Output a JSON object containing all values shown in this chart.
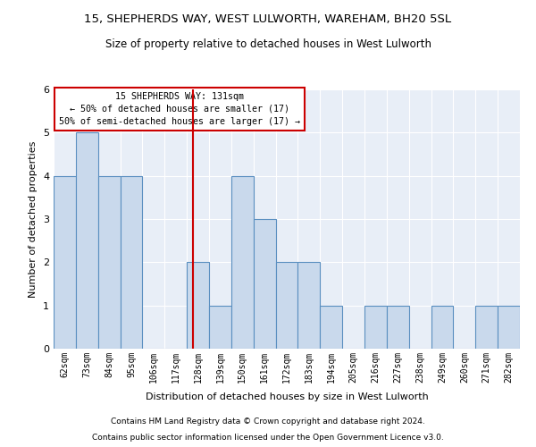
{
  "title": "15, SHEPHERDS WAY, WEST LULWORTH, WAREHAM, BH20 5SL",
  "subtitle": "Size of property relative to detached houses in West Lulworth",
  "xlabel": "Distribution of detached houses by size in West Lulworth",
  "ylabel": "Number of detached properties",
  "footnote1": "Contains HM Land Registry data © Crown copyright and database right 2024.",
  "footnote2": "Contains public sector information licensed under the Open Government Licence v3.0.",
  "annotation_line1": "15 SHEPHERDS WAY: 131sqm",
  "annotation_line2": "← 50% of detached houses are smaller (17)",
  "annotation_line3": "50% of semi-detached houses are larger (17) →",
  "bar_color": "#c9d9ec",
  "bar_edge_color": "#5a8fc0",
  "ref_line_color": "#cc0000",
  "ref_line_x": 131,
  "categories": [
    "62sqm",
    "73sqm",
    "84sqm",
    "95sqm",
    "106sqm",
    "117sqm",
    "128sqm",
    "139sqm",
    "150sqm",
    "161sqm",
    "172sqm",
    "183sqm",
    "194sqm",
    "205sqm",
    "216sqm",
    "227sqm",
    "238sqm",
    "249sqm",
    "260sqm",
    "271sqm",
    "282sqm"
  ],
  "bin_edges": [
    62,
    73,
    84,
    95,
    106,
    117,
    128,
    139,
    150,
    161,
    172,
    183,
    194,
    205,
    216,
    227,
    238,
    249,
    260,
    271,
    282,
    293
  ],
  "values": [
    4,
    5,
    4,
    4,
    0,
    0,
    2,
    1,
    4,
    3,
    2,
    2,
    1,
    0,
    1,
    1,
    0,
    1,
    0,
    1,
    1
  ],
  "ylim": [
    0,
    6
  ],
  "yticks": [
    0,
    1,
    2,
    3,
    4,
    5,
    6
  ],
  "background_color": "#e8eef7",
  "title_fontsize": 9.5,
  "subtitle_fontsize": 8.5,
  "footnote_fontsize": 6.5
}
